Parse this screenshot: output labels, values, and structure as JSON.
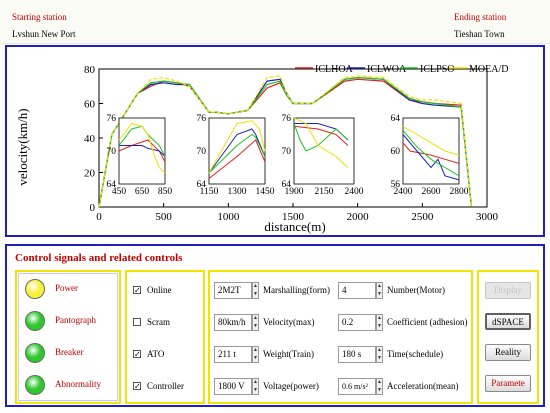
{
  "header": {
    "start_label": "Starting station",
    "start_value": "Lvshun New Port",
    "end_label": "Ending station",
    "end_value": "Tieshan Town"
  },
  "chart_data": {
    "type": "line",
    "xlabel": "distance(m)",
    "ylabel": "velocity(km/h)",
    "xlim": [
      0,
      3000
    ],
    "ylim": [
      0,
      80
    ],
    "x_ticks": [
      0,
      500,
      1000,
      1500,
      2000,
      2500,
      3000
    ],
    "y_ticks": [
      0,
      20,
      40,
      60,
      80
    ],
    "legend": [
      "ICLHOA",
      "ICLWOA",
      "ICLPSO",
      "MOEA/D"
    ],
    "legend_position": "top-right",
    "series": [
      {
        "name": "ICLHOA",
        "color": "#e02020",
        "x": [
          0,
          100,
          300,
          400,
          500,
          600,
          700,
          850,
          900,
          1000,
          1150,
          1300,
          1400,
          1450,
          1500,
          1650,
          1900,
          2000,
          2200,
          2400,
          2500,
          2600,
          2800,
          2880
        ],
        "y": [
          0,
          42,
          66,
          70,
          73,
          72,
          70,
          55,
          55,
          54,
          56,
          69,
          72,
          65,
          60,
          60,
          73,
          74,
          73,
          62,
          61,
          60,
          59,
          0
        ]
      },
      {
        "name": "ICLWOA",
        "color": "#2020c0",
        "x": [
          0,
          100,
          300,
          400,
          500,
          600,
          700,
          850,
          900,
          1000,
          1150,
          1300,
          1400,
          1450,
          1500,
          1650,
          1900,
          2000,
          2200,
          2400,
          2500,
          2600,
          2800,
          2880
        ],
        "y": [
          0,
          42,
          66,
          71,
          72,
          71,
          71,
          55,
          55,
          54,
          56,
          73,
          74,
          66,
          60,
          60,
          74,
          75,
          74,
          62,
          60,
          59,
          58,
          0
        ]
      },
      {
        "name": "ICLPSO",
        "color": "#20c020",
        "x": [
          0,
          100,
          300,
          400,
          500,
          600,
          700,
          850,
          900,
          1000,
          1150,
          1300,
          1400,
          1450,
          1500,
          1650,
          1900,
          2000,
          2200,
          2400,
          2500,
          2600,
          2800,
          2880
        ],
        "y": [
          0,
          42,
          66,
          72,
          73,
          72,
          71,
          55,
          55,
          54,
          56,
          71,
          73,
          65,
          60,
          60,
          74,
          75,
          74,
          63,
          61,
          60,
          58,
          0
        ]
      },
      {
        "name": "MOEA/D",
        "color": "#f0e000",
        "x": [
          0,
          100,
          300,
          400,
          500,
          600,
          700,
          850,
          900,
          1000,
          1150,
          1300,
          1400,
          1450,
          1500,
          1650,
          1900,
          2000,
          2200,
          2400,
          2500,
          2600,
          2800,
          2880
        ],
        "y": [
          0,
          42,
          66,
          74,
          75,
          73,
          70,
          55,
          55,
          54,
          56,
          75,
          76,
          66,
          60,
          60,
          75,
          76,
          75,
          64,
          62,
          62,
          60,
          0
        ]
      }
    ],
    "insets": [
      {
        "xlim": [
          450,
          850
        ],
        "ylim": [
          64,
          76
        ],
        "x_ticks": [
          450,
          650,
          850
        ],
        "y_ticks": [
          64,
          70,
          76
        ],
        "series": [
          {
            "name": "ICLHOA",
            "x": [
              450,
              560,
              700,
              800,
              850
            ],
            "y": [
              70,
              71,
              72,
              70,
              68
            ]
          },
          {
            "name": "ICLWOA",
            "x": [
              450,
              560,
              650,
              700,
              800,
              850
            ],
            "y": [
              71,
              71,
              71,
              70.5,
              70,
              69
            ]
          },
          {
            "name": "ICLPSO",
            "x": [
              450,
              560,
              650,
              700,
              800,
              850
            ],
            "y": [
              71,
              74,
              74.5,
              73,
              71,
              69
            ]
          },
          {
            "name": "MOEA/D",
            "x": [
              450,
              560,
              650,
              700,
              760,
              800,
              850
            ],
            "y": [
              72,
              75,
              74.5,
              73,
              69,
              67,
              66
            ]
          }
        ]
      },
      {
        "xlim": [
          1150,
          1450
        ],
        "ylim": [
          64,
          76
        ],
        "x_ticks": [
          1150,
          1300,
          1450
        ],
        "y_ticks": [
          64,
          70,
          76
        ],
        "series": [
          {
            "name": "ICLHOA",
            "x": [
              1150,
              1300,
              1400,
              1450
            ],
            "y": [
              65,
              69,
              72,
              68
            ]
          },
          {
            "name": "ICLWOA",
            "x": [
              1150,
              1300,
              1380,
              1400,
              1450
            ],
            "y": [
              66,
              73,
              74,
              73,
              69
            ]
          },
          {
            "name": "ICLPSO",
            "x": [
              1150,
              1300,
              1380,
              1400,
              1450
            ],
            "y": [
              66,
              71,
              73,
              72.5,
              69
            ]
          },
          {
            "name": "MOEA/D",
            "x": [
              1150,
              1300,
              1380,
              1420,
              1450
            ],
            "y": [
              66,
              75,
              75.5,
              74,
              70
            ]
          }
        ]
      },
      {
        "xlim": [
          1900,
          2400
        ],
        "ylim": [
          64,
          76
        ],
        "x_ticks": [
          1900,
          2150,
          2400
        ],
        "y_ticks": [
          64,
          70,
          76
        ],
        "series": [
          {
            "name": "ICLHOA",
            "x": [
              1900,
              2100,
              2250,
              2350
            ],
            "y": [
              74.5,
              74,
              73,
              71
            ]
          },
          {
            "name": "ICLWOA",
            "x": [
              1900,
              2100,
              2250,
              2350
            ],
            "y": [
              75,
              75,
              74,
              72
            ]
          },
          {
            "name": "ICLPSO",
            "x": [
              1900,
              1950,
              2000,
              2100,
              2250,
              2350
            ],
            "y": [
              75,
              72,
              70,
              71,
              74,
              72
            ]
          },
          {
            "name": "MOEA/D",
            "x": [
              1900,
              2000,
              2100,
              2250,
              2350
            ],
            "y": [
              76,
              75,
              71,
              69,
              67
            ]
          }
        ]
      },
      {
        "xlim": [
          2400,
          2800
        ],
        "ylim": [
          56,
          64
        ],
        "x_ticks": [
          2400,
          2600,
          2800
        ],
        "y_ticks": [
          56,
          60,
          64
        ],
        "series": [
          {
            "name": "ICLHOA",
            "x": [
              2400,
              2450,
              2600,
              2700,
              2800
            ],
            "y": [
              61,
              60,
              59.5,
              59,
              58.5
            ]
          },
          {
            "name": "ICLWOA",
            "x": [
              2400,
              2500,
              2600,
              2650,
              2700,
              2800
            ],
            "y": [
              62,
              60,
              58,
              59,
              57,
              56.5
            ]
          },
          {
            "name": "ICLPSO",
            "x": [
              2400,
              2500,
              2600,
              2700,
              2800
            ],
            "y": [
              62.5,
              60.5,
              59,
              58,
              57
            ]
          },
          {
            "name": "MOEA/D",
            "x": [
              2400,
              2500,
              2600,
              2700,
              2800
            ],
            "y": [
              63,
              62,
              61,
              60,
              59.5
            ]
          }
        ]
      }
    ]
  },
  "panel": {
    "title": "Control signals and related controls",
    "indicators": [
      {
        "label": "Power",
        "state": "yellow",
        "color": "#f8ef3a"
      },
      {
        "label": "Pantograph",
        "state": "green",
        "color": "#2ec92e"
      },
      {
        "label": "Breaker",
        "state": "green",
        "color": "#2ec92e"
      },
      {
        "label": "Abnormality",
        "state": "green",
        "color": "#2ec92e"
      }
    ],
    "checkboxes": [
      {
        "label": "Online",
        "checked": true,
        "mark": "✓"
      },
      {
        "label": "Scram",
        "checked": false,
        "mark": ""
      },
      {
        "label": "ATO",
        "checked": true,
        "mark": "✓"
      },
      {
        "label": "Controller",
        "checked": true,
        "mark": "✓"
      }
    ],
    "params_left": [
      {
        "value": "2M2T",
        "label": "Marshalling(form)"
      },
      {
        "value": "80km/h",
        "label": "Velocity(max)"
      },
      {
        "value": "211 t",
        "label": "Weight(Train)"
      },
      {
        "value": "1800 V",
        "label": "Voltage(power)"
      }
    ],
    "params_right": [
      {
        "value": "4",
        "label": "Number(Motor)"
      },
      {
        "value": "0.2",
        "label": "Coefficient (adhesion)"
      },
      {
        "value": "180 s",
        "label": "Time(schedule)"
      },
      {
        "value": "0.6 m/s²",
        "label": "Acceleration(mean)"
      }
    ],
    "buttons": [
      {
        "label": "Display",
        "disabled": true
      },
      {
        "label": "dSPACE",
        "disabled": false
      },
      {
        "label": "Reality",
        "disabled": false
      },
      {
        "label": "Paramete",
        "disabled": false
      }
    ]
  }
}
